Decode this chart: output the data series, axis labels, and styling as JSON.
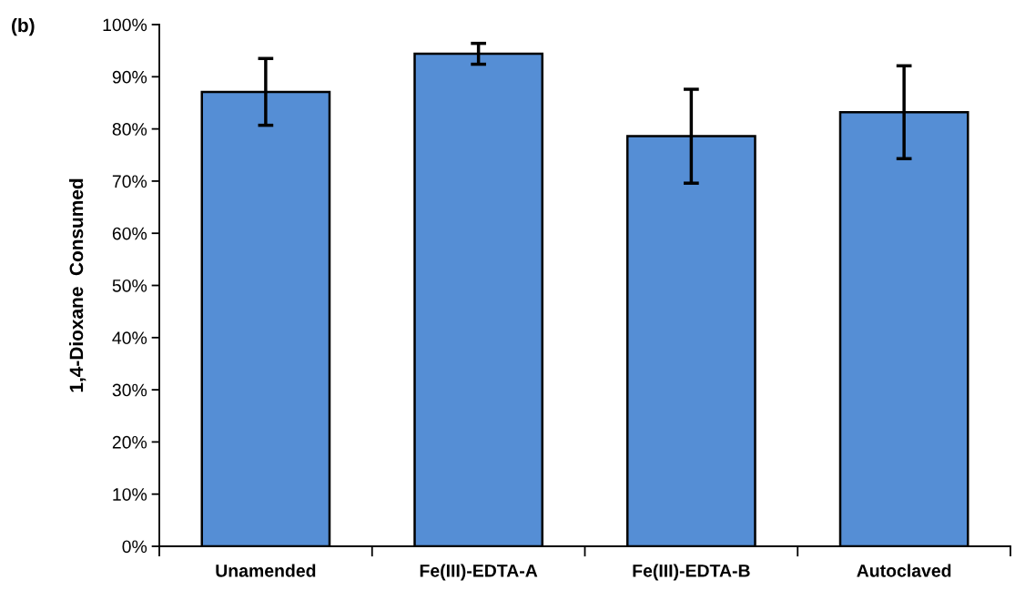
{
  "chart_data": {
    "type": "bar",
    "ylabel": "1,4-Dioxane  Consumed",
    "annotations": [
      "(b)"
    ],
    "categories": [
      "Unamended",
      "Fe(III)-EDTA-A",
      "Fe(III)-EDTA-B",
      "Autoclaved"
    ],
    "values": [
      87.1,
      94.4,
      78.6,
      83.2
    ],
    "errors": [
      6.4,
      2.0,
      9.0,
      8.9
    ],
    "color": "#558ed5",
    "ylim": [
      0,
      100
    ],
    "yticks": [
      {
        "value": 0,
        "label": "0%"
      },
      {
        "value": 10,
        "label": "10%"
      },
      {
        "value": 20,
        "label": "20%"
      },
      {
        "value": 30,
        "label": "30%"
      },
      {
        "value": 40,
        "label": "40%"
      },
      {
        "value": 50,
        "label": "50%"
      },
      {
        "value": 60,
        "label": "60%"
      },
      {
        "value": 70,
        "label": "70%"
      },
      {
        "value": 80,
        "label": "80%"
      },
      {
        "value": 90,
        "label": "90%"
      },
      {
        "value": 100,
        "label": "100%"
      }
    ],
    "grid": false
  }
}
